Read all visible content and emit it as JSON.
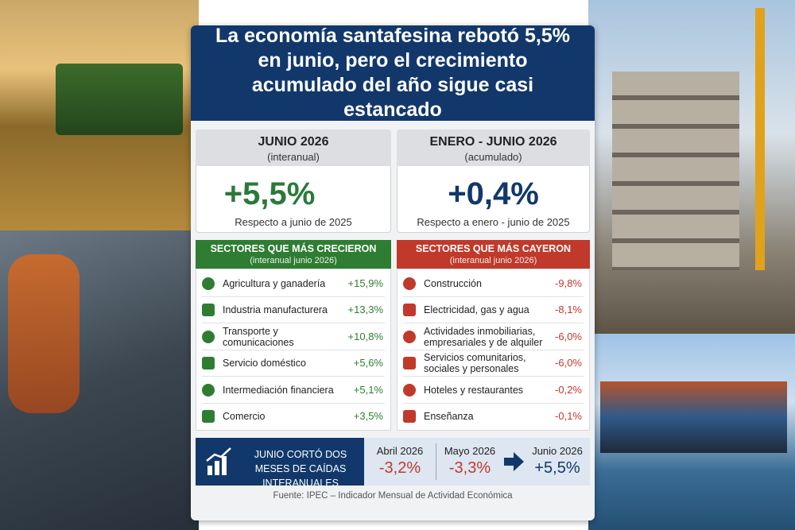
{
  "header": {
    "title": "La economía santafesina rebotó 5,5% en junio, pero el crecimiento acumulado del año sigue casi estancado"
  },
  "cards": [
    {
      "title": "JUNIO 2026",
      "subtitle": "(interanual)",
      "value": "+5,5%",
      "note": "Respecto a junio de 2025"
    },
    {
      "title": "ENERO - JUNIO 2026",
      "subtitle": "(acumulado)",
      "value": "+0,4%",
      "note": "Respecto a enero - junio de 2025"
    }
  ],
  "growing": {
    "title": "SECTORES QUE MÁS CRECIERON",
    "subtitle": "(interanual junio 2026)",
    "rows": [
      [
        "Agricultura y ganadería",
        "+15,9%"
      ],
      [
        "Industria manufacturera",
        "+13,3%"
      ],
      [
        "Transporte y comunicaciones",
        "+10,8%"
      ],
      [
        "Servicio doméstico",
        "+5,6%"
      ],
      [
        "Intermediación financiera",
        "+5,1%"
      ],
      [
        "Comercio",
        "+3,5%"
      ]
    ]
  },
  "falling": {
    "title": "SECTORES QUE MÁS CAYERON",
    "subtitle": "(interanual junio 2026)",
    "rows": [
      [
        "Construcción",
        "-9,8%"
      ],
      [
        "Electricidad, gas y agua",
        "-8,1%"
      ],
      [
        "Actividades inmobiliarias, empresariales y de alquiler",
        "-6,0%"
      ],
      [
        "Servicios comunitarios, sociales y personales",
        "-6,0%"
      ],
      [
        "Hoteles y restaurantes",
        "-0,2%"
      ],
      [
        "Enseñanza",
        "-0,1%"
      ]
    ]
  },
  "timeline": {
    "text": "JUNIO CORTÓ DOS MESES DE CAÍDAS INTERANUALES",
    "points": [
      {
        "label": "Abril 2026",
        "value": "-3,2%"
      },
      {
        "label": "Mayo 2026",
        "value": "-3,3%"
      },
      {
        "label": "Junio 2026",
        "value": "+5,5%"
      }
    ]
  },
  "source": "Fuente: IPEC – Indicador Mensual de Actividad Económica"
}
